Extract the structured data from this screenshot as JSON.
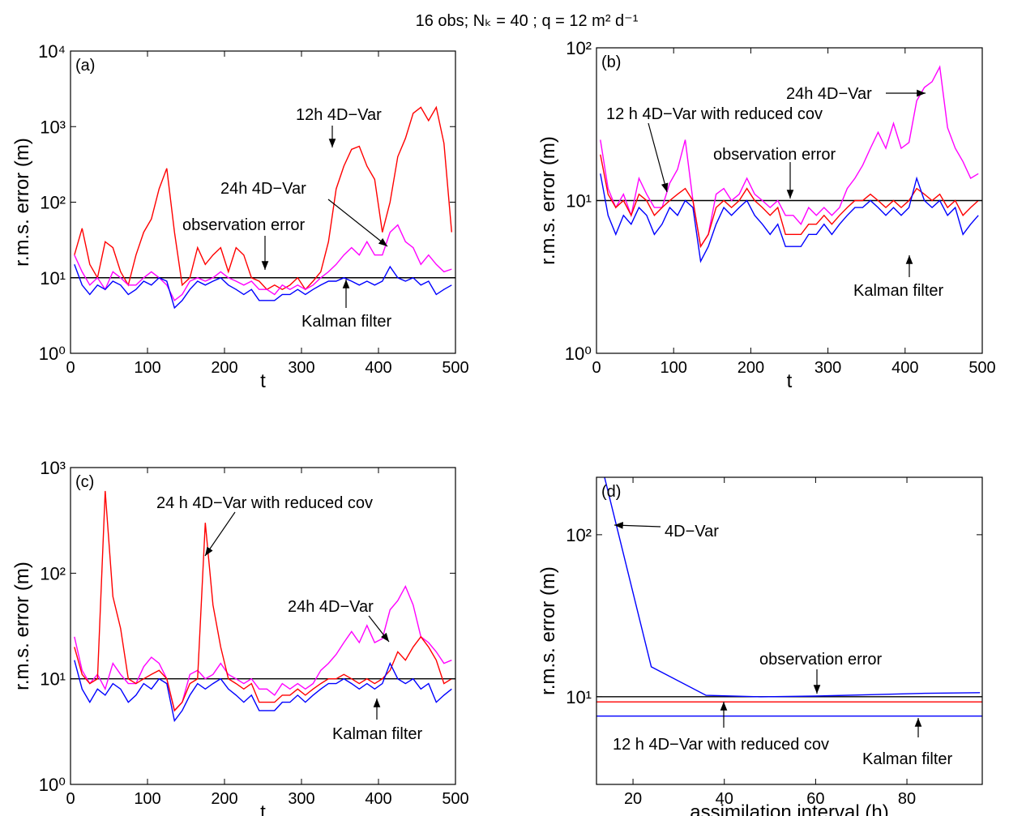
{
  "title": "16 obs;  Nₖ = 40 ; q = 12 m² d⁻¹",
  "chart_data": [
    {
      "type": "line",
      "label": "(a)",
      "xlabel": "t",
      "ylabel": "r.m.s. error (m)",
      "log_y": true,
      "xlim": [
        0,
        500
      ],
      "xticks": [
        0,
        100,
        200,
        300,
        400,
        500
      ],
      "ylim": [
        1,
        10000
      ],
      "yticks": [
        {
          "value": 1,
          "label": "10⁰"
        },
        {
          "value": 10,
          "label": "10¹"
        },
        {
          "value": 100,
          "label": "10²"
        },
        {
          "value": 1000,
          "label": "10³"
        },
        {
          "value": 10000,
          "label": "10⁴"
        }
      ],
      "x": [
        5,
        15,
        25,
        35,
        45,
        55,
        65,
        75,
        85,
        95,
        105,
        115,
        125,
        135,
        145,
        155,
        165,
        175,
        185,
        195,
        205,
        215,
        225,
        235,
        245,
        255,
        265,
        275,
        285,
        295,
        305,
        315,
        325,
        335,
        345,
        355,
        365,
        375,
        385,
        395,
        405,
        415,
        425,
        435,
        445,
        455,
        465,
        475,
        485,
        495
      ],
      "hlines": [
        {
          "value": 10,
          "color": "#000000"
        }
      ],
      "series": [
        {
          "color": "#ff0000",
          "values": [
            20,
            45,
            15,
            10,
            30,
            25,
            12,
            8,
            20,
            40,
            60,
            150,
            280,
            40,
            8,
            10,
            25,
            15,
            20,
            25,
            12,
            25,
            20,
            10,
            9,
            7,
            8,
            7,
            8,
            10,
            7,
            9,
            12,
            30,
            150,
            300,
            500,
            550,
            300,
            200,
            40,
            100,
            400,
            700,
            1500,
            1800,
            1200,
            1800,
            600,
            40
          ]
        },
        {
          "color": "#ff00ff",
          "values": [
            20,
            12,
            8,
            10,
            7,
            12,
            10,
            8,
            8,
            10,
            12,
            10,
            8,
            5,
            6,
            9,
            10,
            9,
            10,
            12,
            10,
            9,
            8,
            9,
            7,
            7,
            6,
            8,
            7,
            8,
            7,
            8,
            10,
            12,
            15,
            20,
            25,
            20,
            30,
            20,
            20,
            40,
            50,
            30,
            25,
            15,
            20,
            15,
            12,
            13
          ]
        },
        {
          "color": "#0000ff",
          "values": [
            15,
            8,
            6,
            8,
            7,
            9,
            8,
            6,
            7,
            9,
            8,
            10,
            9,
            4,
            5,
            7,
            9,
            8,
            9,
            10,
            8,
            7,
            6,
            7,
            5,
            5,
            5,
            6,
            6,
            7,
            6,
            7,
            8,
            9,
            9,
            10,
            9,
            8,
            9,
            8,
            9,
            14,
            10,
            9,
            10,
            8,
            9,
            6,
            7,
            8
          ]
        }
      ],
      "annotations": [
        "12h  4D−Var",
        "24h  4D−Var",
        "observation error",
        "Kalman filter"
      ]
    },
    {
      "type": "line",
      "label": "(b)",
      "xlabel": "t",
      "ylabel": "r.m.s. error (m)",
      "log_y": true,
      "xlim": [
        0,
        500
      ],
      "xticks": [
        0,
        100,
        200,
        300,
        400,
        500
      ],
      "ylim": [
        1,
        100
      ],
      "yticks": [
        {
          "value": 1,
          "label": "10⁰"
        },
        {
          "value": 10,
          "label": "10¹"
        },
        {
          "value": 100,
          "label": "10²"
        }
      ],
      "x": [
        5,
        15,
        25,
        35,
        45,
        55,
        65,
        75,
        85,
        95,
        105,
        115,
        125,
        135,
        145,
        155,
        165,
        175,
        185,
        195,
        205,
        215,
        225,
        235,
        245,
        255,
        265,
        275,
        285,
        295,
        305,
        315,
        325,
        335,
        345,
        355,
        365,
        375,
        385,
        395,
        405,
        415,
        425,
        435,
        445,
        455,
        465,
        475,
        485,
        495
      ],
      "hlines": [
        {
          "value": 10,
          "color": "#000000"
        }
      ],
      "series": [
        {
          "color": "#ff00ff",
          "values": [
            25,
            12,
            9,
            11,
            8,
            14,
            11,
            9,
            9,
            13,
            16,
            25,
            10,
            5,
            6,
            11,
            12,
            10,
            11,
            14,
            11,
            10,
            9,
            10,
            8,
            8,
            7,
            9,
            8,
            9,
            8,
            9,
            12,
            14,
            17,
            22,
            28,
            22,
            32,
            22,
            24,
            45,
            55,
            60,
            75,
            30,
            22,
            18,
            14,
            15
          ]
        },
        {
          "color": "#ff0000",
          "values": [
            20,
            11,
            9,
            10,
            8,
            11,
            10,
            8,
            9,
            10,
            11,
            12,
            10,
            5,
            6,
            9,
            10,
            9,
            10,
            12,
            10,
            9,
            8,
            9,
            6,
            6,
            6,
            7,
            7,
            8,
            7,
            8,
            9,
            10,
            10,
            11,
            10,
            9,
            10,
            9,
            10,
            12,
            11,
            10,
            11,
            9,
            10,
            8,
            9,
            10
          ]
        },
        {
          "color": "#0000ff",
          "values": [
            15,
            8,
            6,
            8,
            7,
            9,
            8,
            6,
            7,
            9,
            8,
            10,
            9,
            4,
            5,
            7,
            9,
            8,
            9,
            10,
            8,
            7,
            6,
            7,
            5,
            5,
            5,
            6,
            6,
            7,
            6,
            7,
            8,
            9,
            9,
            10,
            9,
            8,
            9,
            8,
            9,
            14,
            10,
            9,
            10,
            8,
            9,
            6,
            7,
            8
          ]
        }
      ],
      "annotations": [
        "24h  4D−Var",
        "12 h 4D−Var with reduced cov",
        "observation error",
        "Kalman filter"
      ]
    },
    {
      "type": "line",
      "label": "(c)",
      "xlabel": "t",
      "ylabel": "r.m.s. error (m)",
      "log_y": true,
      "xlim": [
        0,
        500
      ],
      "xticks": [
        0,
        100,
        200,
        300,
        400,
        500
      ],
      "ylim": [
        1,
        1000
      ],
      "yticks": [
        {
          "value": 1,
          "label": "10⁰"
        },
        {
          "value": 10,
          "label": "10¹"
        },
        {
          "value": 100,
          "label": "10²"
        },
        {
          "value": 1000,
          "label": "10³"
        }
      ],
      "x": [
        5,
        15,
        25,
        35,
        45,
        55,
        65,
        75,
        85,
        95,
        105,
        115,
        125,
        135,
        145,
        155,
        165,
        175,
        185,
        195,
        205,
        215,
        225,
        235,
        245,
        255,
        265,
        275,
        285,
        295,
        305,
        315,
        325,
        335,
        345,
        355,
        365,
        375,
        385,
        395,
        405,
        415,
        425,
        435,
        445,
        455,
        465,
        475,
        485,
        495
      ],
      "hlines": [
        {
          "value": 10,
          "color": "#000000"
        }
      ],
      "series": [
        {
          "color": "#ff00ff",
          "values": [
            25,
            12,
            9,
            11,
            8,
            14,
            11,
            9,
            9,
            13,
            16,
            14,
            10,
            5,
            6,
            11,
            12,
            10,
            11,
            14,
            11,
            10,
            9,
            10,
            8,
            8,
            7,
            9,
            8,
            9,
            8,
            9,
            12,
            14,
            17,
            22,
            28,
            22,
            32,
            22,
            24,
            45,
            55,
            75,
            50,
            25,
            22,
            18,
            14,
            15
          ]
        },
        {
          "color": "#ff0000",
          "values": [
            20,
            11,
            9,
            10,
            600,
            60,
            30,
            10,
            9,
            10,
            11,
            12,
            10,
            5,
            6,
            9,
            10,
            300,
            50,
            20,
            10,
            9,
            8,
            9,
            6,
            6,
            6,
            7,
            7,
            8,
            7,
            8,
            9,
            10,
            10,
            11,
            10,
            9,
            10,
            9,
            10,
            12,
            18,
            15,
            20,
            25,
            20,
            15,
            9,
            10
          ]
        },
        {
          "color": "#0000ff",
          "values": [
            15,
            8,
            6,
            8,
            7,
            9,
            8,
            6,
            7,
            9,
            8,
            10,
            9,
            4,
            5,
            7,
            9,
            8,
            9,
            10,
            8,
            7,
            6,
            7,
            5,
            5,
            5,
            6,
            6,
            7,
            6,
            7,
            8,
            9,
            9,
            10,
            9,
            8,
            9,
            8,
            9,
            14,
            10,
            9,
            10,
            8,
            9,
            6,
            7,
            8
          ]
        }
      ],
      "annotations": [
        "24 h 4D−Var with reduced cov",
        "24h  4D−Var",
        "Kalman filter"
      ]
    },
    {
      "type": "line",
      "label": "(d)",
      "xlabel": "assimilation interval (h)",
      "ylabel": "r.m.s. error (m)",
      "log_y": true,
      "xlim": [
        12,
        96.5
      ],
      "xticks": [
        20,
        40,
        60,
        80
      ],
      "ylim": [
        2.88,
        226
      ],
      "yticks": [
        {
          "value": 10,
          "label": "10¹"
        },
        {
          "value": 100,
          "label": "10²"
        }
      ],
      "x": [
        12,
        24,
        36,
        48,
        60,
        72,
        84,
        96
      ],
      "hlines": [
        {
          "value": 10,
          "color": "#000000"
        },
        {
          "value": 9.3,
          "color": "#ff0000"
        },
        {
          "value": 7.6,
          "color": "#0000ff"
        }
      ],
      "series": [
        {
          "color": "#0000ff",
          "values": [
            360,
            15.3,
            10.2,
            10,
            10.1,
            10.3,
            10.5,
            10.6
          ]
        }
      ],
      "annotations": [
        "4D−Var",
        "observation error",
        "12 h 4D−Var with reduced cov",
        "Kalman filter"
      ]
    }
  ]
}
